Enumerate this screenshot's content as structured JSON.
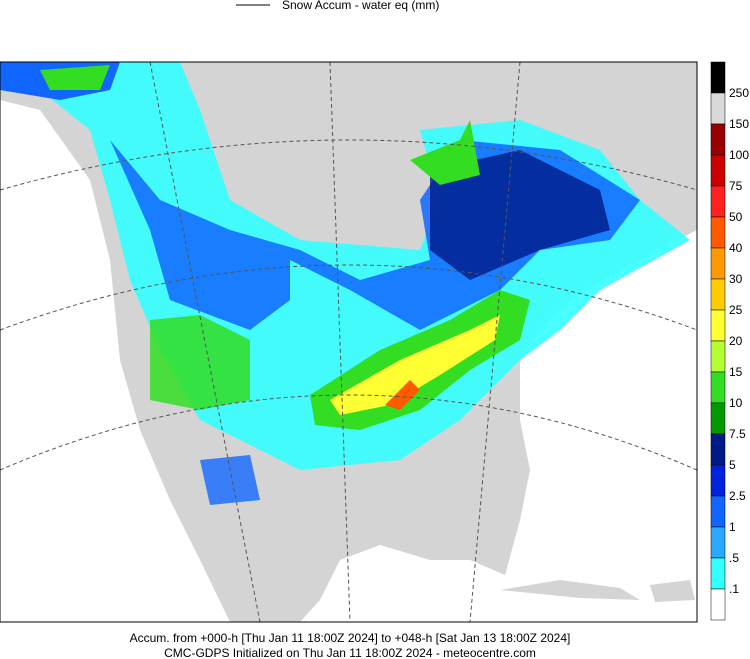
{
  "header": {
    "legend_label": "Snow Accum - water eq (mm)"
  },
  "colorbar": {
    "top_color": "#000000",
    "bottom_color": "#ffffff",
    "levels": [
      {
        "label": "250",
        "color": "#d9d9d9"
      },
      {
        "label": "150",
        "color": "#ff00cc"
      },
      {
        "label": "100",
        "color": "#990000"
      },
      {
        "label": "75",
        "color": "#cc0000"
      },
      {
        "label": "50",
        "color": "#ff2020"
      },
      {
        "label": "40",
        "color": "#ff5a00"
      },
      {
        "label": "30",
        "color": "#ff9900"
      },
      {
        "label": "25",
        "color": "#ffcc00"
      },
      {
        "label": "20",
        "color": "#ffff33"
      },
      {
        "label": "15",
        "color": "#b3ff33"
      },
      {
        "label": "10",
        "color": "#33dd22"
      },
      {
        "label": "7.5",
        "color": "#009900"
      },
      {
        "label": "5",
        "color": "#001a88"
      },
      {
        "label": "2.5",
        "color": "#0022dd"
      },
      {
        "label": "1",
        "color": "#1166ff"
      },
      {
        "label": ".5",
        "color": "#2aa7ff"
      },
      {
        "label": ".1",
        "color": "#33ffff"
      }
    ]
  },
  "footer": {
    "line1": "Accum. from +000-h [Thu Jan 11 18:00Z 2024] to +048-h [Sat Jan 13 18:00Z 2024]",
    "line2": "CMC-GDPS Initialized on Thu Jan 11 18:00Z 2024 - meteocentre.com"
  }
}
